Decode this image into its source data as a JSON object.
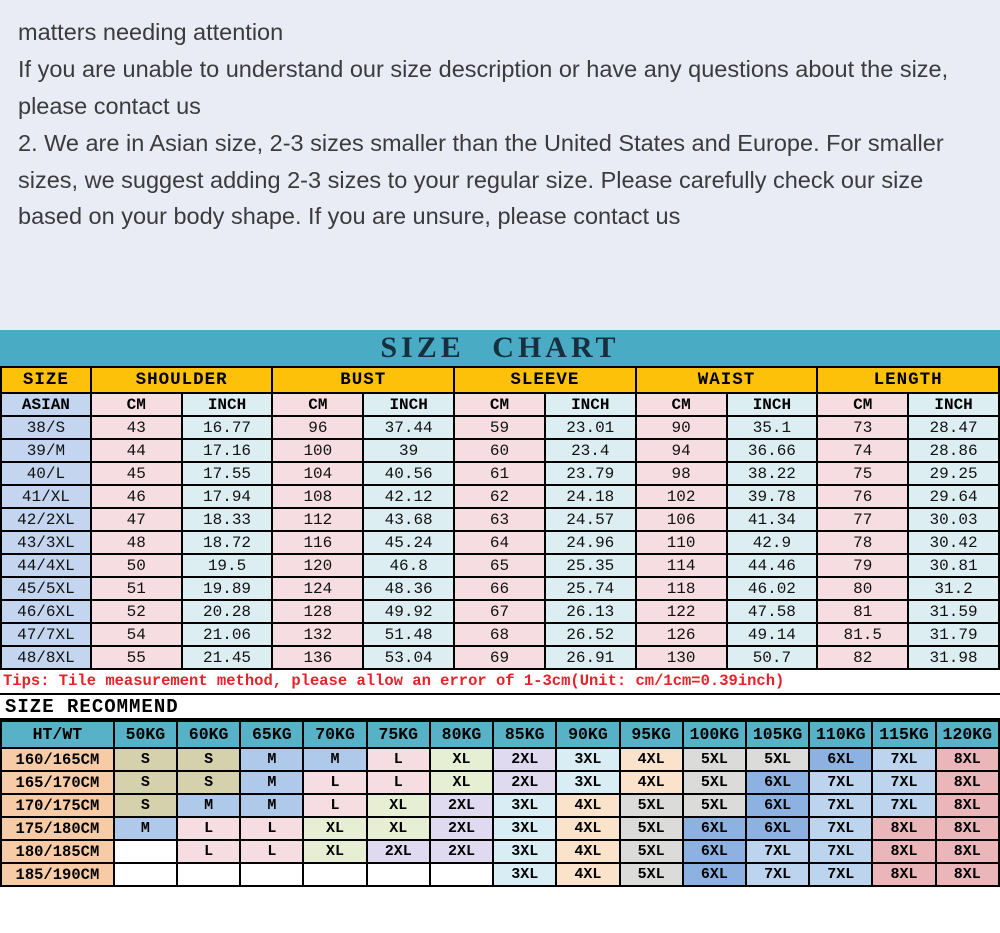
{
  "colors": {
    "bg_top": "#e9ebf5",
    "text": "#3b3b3d",
    "teal": "#4aabc4",
    "teal2": "#57b1c7",
    "yellow": "#fec10a",
    "title_ink": "#16303f",
    "periwinkle": "#c4d5f0",
    "pink": "#f6dde2",
    "cyan": "#ddeef3",
    "peach": "#f6cba5",
    "red": "#e62129"
  },
  "notes": {
    "heading": "matters needing attention",
    "para1": "If you are unable to understand our size description or have any questions about the size, please contact us",
    "para2": "2. We are in Asian size, 2-3 sizes smaller than the United States and Europe. For smaller sizes, we suggest adding 2-3 sizes to your regular size. Please carefully check our size based on your body shape. If you are unsure, please contact us"
  },
  "size_chart": {
    "title": "SIZE CHART",
    "group_headers": [
      "SIZE",
      "SHOULDER",
      "BUST",
      "SLEEVE",
      "WAIST",
      "LENGTH"
    ],
    "unit_row": [
      "ASIAN",
      "CM",
      "INCH",
      "CM",
      "INCH",
      "CM",
      "INCH",
      "CM",
      "INCH",
      "CM",
      "INCH"
    ],
    "rows": [
      [
        "38/S",
        "43",
        "16.77",
        "96",
        "37.44",
        "59",
        "23.01",
        "90",
        "35.1",
        "73",
        "28.47"
      ],
      [
        "39/M",
        "44",
        "17.16",
        "100",
        "39",
        "60",
        "23.4",
        "94",
        "36.66",
        "74",
        "28.86"
      ],
      [
        "40/L",
        "45",
        "17.55",
        "104",
        "40.56",
        "61",
        "23.79",
        "98",
        "38.22",
        "75",
        "29.25"
      ],
      [
        "41/XL",
        "46",
        "17.94",
        "108",
        "42.12",
        "62",
        "24.18",
        "102",
        "39.78",
        "76",
        "29.64"
      ],
      [
        "42/2XL",
        "47",
        "18.33",
        "112",
        "43.68",
        "63",
        "24.57",
        "106",
        "41.34",
        "77",
        "30.03"
      ],
      [
        "43/3XL",
        "48",
        "18.72",
        "116",
        "45.24",
        "64",
        "24.96",
        "110",
        "42.9",
        "78",
        "30.42"
      ],
      [
        "44/4XL",
        "50",
        "19.5",
        "120",
        "46.8",
        "65",
        "25.35",
        "114",
        "44.46",
        "79",
        "30.81"
      ],
      [
        "45/5XL",
        "51",
        "19.89",
        "124",
        "48.36",
        "66",
        "25.74",
        "118",
        "46.02",
        "80",
        "31.2"
      ],
      [
        "46/6XL",
        "52",
        "20.28",
        "128",
        "49.92",
        "67",
        "26.13",
        "122",
        "47.58",
        "81",
        "31.59"
      ],
      [
        "47/7XL",
        "54",
        "21.06",
        "132",
        "51.48",
        "68",
        "26.52",
        "126",
        "49.14",
        "81.5",
        "31.79"
      ],
      [
        "48/8XL",
        "55",
        "21.45",
        "136",
        "53.04",
        "69",
        "26.91",
        "130",
        "50.7",
        "82",
        "31.98"
      ]
    ]
  },
  "tips": "Tips: Tile measurement method, please allow an error of 1-3cm(Unit: cm/1cm=0.39inch)",
  "recommend": {
    "heading": "SIZE RECOMMEND",
    "columns": [
      "HT/WT",
      "50KG",
      "60KG",
      "65KG",
      "70KG",
      "75KG",
      "80KG",
      "85KG",
      "90KG",
      "95KG",
      "100KG",
      "105KG",
      "110KG",
      "115KG",
      "120KG"
    ],
    "rows": [
      {
        "label": "160/165CM",
        "values": [
          "S",
          "S",
          "M",
          "M",
          "L",
          "XL",
          "2XL",
          "3XL",
          "4XL",
          "5XL",
          "5XL",
          "6XL",
          "7XL",
          "8XL"
        ]
      },
      {
        "label": "165/170CM",
        "values": [
          "S",
          "S",
          "M",
          "L",
          "L",
          "XL",
          "2XL",
          "3XL",
          "4XL",
          "5XL",
          "6XL",
          "7XL",
          "7XL",
          "8XL"
        ]
      },
      {
        "label": "170/175CM",
        "values": [
          "S",
          "M",
          "M",
          "L",
          "XL",
          "2XL",
          "3XL",
          "4XL",
          "5XL",
          "5XL",
          "6XL",
          "7XL",
          "7XL",
          "8XL"
        ]
      },
      {
        "label": "175/180CM",
        "values": [
          "M",
          "L",
          "L",
          "XL",
          "XL",
          "2XL",
          "3XL",
          "4XL",
          "5XL",
          "6XL",
          "6XL",
          "7XL",
          "8XL",
          "8XL"
        ]
      },
      {
        "label": "180/185CM",
        "values": [
          "",
          "L",
          "L",
          "XL",
          "2XL",
          "2XL",
          "3XL",
          "4XL",
          "5XL",
          "6XL",
          "7XL",
          "7XL",
          "8XL",
          "8XL"
        ]
      },
      {
        "label": "185/190CM",
        "values": [
          "",
          "",
          "",
          "",
          "",
          "",
          "3XL",
          "4XL",
          "5XL",
          "6XL",
          "7XL",
          "7XL",
          "8XL",
          "8XL"
        ]
      }
    ],
    "size_colors": {
      "S": "#d5d1ac",
      "M": "#aec9e9",
      "L": "#f5dde1",
      "XL": "#e6efd4",
      "2XL": "#e0daf0",
      "3XL": "#d9edf4",
      "4XL": "#fbe3cb",
      "5XL": "#dbdbd9",
      "6XL": "#8db1e0",
      "7XL": "#bcd4ee",
      "8XL": "#eab6ba"
    }
  }
}
